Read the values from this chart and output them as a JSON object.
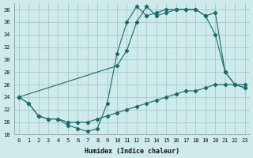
{
  "xlabel": "Humidex (Indice chaleur)",
  "bg_color": "#ceeaea",
  "grid_color": "#a8cece",
  "line_color": "#1a6b6b",
  "xlim": [
    -0.5,
    23.5
  ],
  "ylim": [
    18,
    39
  ],
  "xticks": [
    0,
    1,
    2,
    3,
    4,
    5,
    6,
    7,
    8,
    9,
    10,
    11,
    12,
    13,
    14,
    15,
    16,
    17,
    18,
    19,
    20,
    21,
    22,
    23
  ],
  "yticks": [
    18,
    20,
    22,
    24,
    26,
    28,
    30,
    32,
    34,
    36,
    38
  ],
  "line1_x": [
    0,
    1,
    2,
    3,
    4,
    5,
    6,
    7,
    8,
    9,
    10,
    11,
    12,
    13,
    14,
    15,
    16,
    17,
    18,
    19,
    20,
    21,
    22,
    23
  ],
  "line1_y": [
    24,
    23,
    21,
    20.5,
    20.5,
    20,
    20,
    20,
    20.5,
    21,
    21.5,
    22,
    22.5,
    23,
    23.5,
    24,
    24.5,
    25,
    25,
    25.5,
    26,
    26,
    26,
    26
  ],
  "line2_x": [
    0,
    1,
    2,
    3,
    4,
    5,
    6,
    7,
    8,
    9,
    10,
    11,
    12,
    13,
    14,
    15,
    16,
    17,
    18,
    19,
    20,
    21,
    22,
    23
  ],
  "line2_y": [
    24,
    23,
    21,
    20.5,
    20.5,
    19.5,
    19,
    18.5,
    19,
    23,
    31,
    36,
    38.5,
    37,
    37.5,
    38,
    38,
    38,
    38,
    37,
    34,
    28,
    26,
    25.5
  ],
  "line3_x": [
    0,
    10,
    11,
    12,
    13,
    14,
    15,
    16,
    17,
    18,
    19,
    20,
    21,
    22,
    23
  ],
  "line3_y": [
    24,
    29,
    31.5,
    36,
    38.5,
    37,
    37.5,
    38,
    38,
    38,
    37,
    37.5,
    28,
    26,
    25.5
  ]
}
